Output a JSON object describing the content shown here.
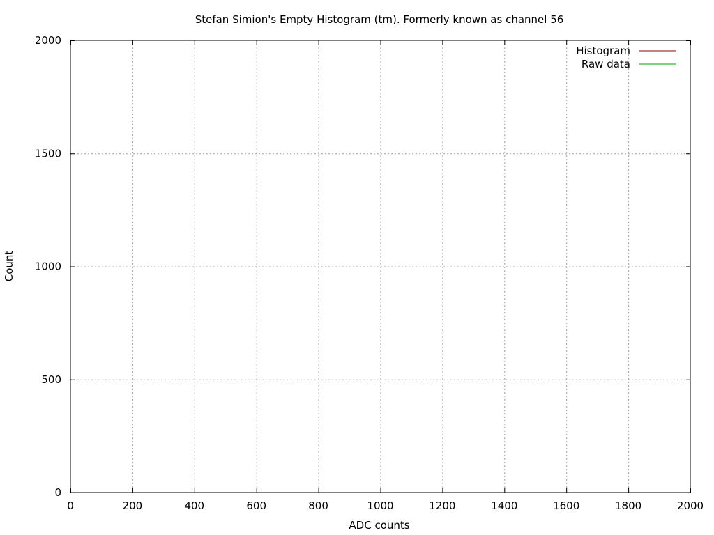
{
  "chart_data": {
    "type": "line",
    "title": "Stefan Simion's Empty Histogram (tm). Formerly known as channel 56",
    "xlabel": "ADC counts",
    "ylabel": "Count",
    "xlim": [
      0,
      2000
    ],
    "ylim": [
      0,
      2000
    ],
    "x_ticks": [
      0,
      200,
      400,
      600,
      800,
      1000,
      1200,
      1400,
      1600,
      1800,
      2000
    ],
    "y_ticks": [
      0,
      500,
      1000,
      1500,
      2000
    ],
    "grid": true,
    "legend_position": "top-right",
    "series": [
      {
        "name": "Histogram",
        "color": "#8b0000",
        "x": [],
        "y": []
      },
      {
        "name": "Raw data",
        "color": "#00a000",
        "x": [],
        "y": []
      }
    ]
  }
}
